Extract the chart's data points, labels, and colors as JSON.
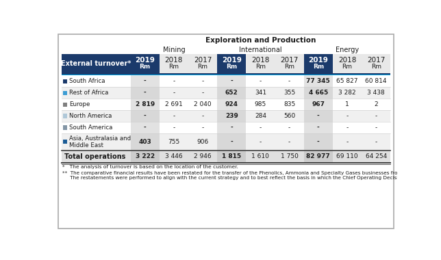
{
  "title1": "Exploration and Production",
  "mining_label": "Mining",
  "intl_label": "International",
  "energy_label": "Energy",
  "row_header": "External turnover*",
  "years": [
    "2019",
    "2018",
    "2017"
  ],
  "rows": [
    {
      "label": "South Africa",
      "swatch": "#1b3a6b",
      "mining": [
        "-",
        "-",
        "-"
      ],
      "intl": [
        "-",
        "-",
        "-"
      ],
      "energy": [
        "77 345",
        "65 827",
        "60 814"
      ]
    },
    {
      "label": "Rest of Africa",
      "swatch": "#3d9dd4",
      "mining": [
        "-",
        "-",
        "-"
      ],
      "intl": [
        "652",
        "341",
        "355"
      ],
      "energy": [
        "4 665",
        "3 282",
        "3 438"
      ]
    },
    {
      "label": "Europe",
      "swatch": "#7f7f7f",
      "mining": [
        "2 819",
        "2 691",
        "2 040"
      ],
      "intl": [
        "924",
        "985",
        "835"
      ],
      "energy": [
        "967",
        "1",
        "2"
      ]
    },
    {
      "label": "North America",
      "swatch": "#b0c8d8",
      "mining": [
        "-",
        "-",
        "-"
      ],
      "intl": [
        "239",
        "284",
        "560"
      ],
      "energy": [
        "-",
        "-",
        "-"
      ]
    },
    {
      "label": "South America",
      "swatch": "#8496a6",
      "mining": [
        "-",
        "-",
        "-"
      ],
      "intl": [
        "-",
        "-",
        "-"
      ],
      "energy": [
        "-",
        "-",
        "-"
      ]
    },
    {
      "label": "Asia, Australasia and\nMiddle East",
      "swatch": "#1b5c96",
      "mining": [
        "403",
        "755",
        "906"
      ],
      "intl": [
        "-",
        "-",
        "-"
      ],
      "energy": [
        "-",
        "-",
        "-"
      ]
    }
  ],
  "total": {
    "label": "Total operations",
    "mining": [
      "3 222",
      "3 446",
      "2 946"
    ],
    "intl": [
      "1 815",
      "1 610",
      "1 750"
    ],
    "energy": [
      "82 977",
      "69 110",
      "64 254"
    ]
  },
  "fn1": "*   The analysis of turnover is based on the location of the customer.",
  "fn2_line1": "**  The comparative financial results have been restated for the transfer of the Phenolics, Ammonia and Specialty Gases businesses from Performance Chemicals to Base Chemicals.",
  "fn2_line2": "     The restatements were performed to align with the current strategy and to best reflect the basis in which the Chief Operating Decision Maker reviews and makes decision.",
  "dark_blue": "#1b3a6b",
  "cyan_line": "#00b0f0",
  "shaded_col_bg": "#e2e2e2",
  "alt_row_bg": "#f0f0f0",
  "white": "#ffffff",
  "black": "#1a1a1a",
  "total_row_bg": "#d4d4d4"
}
